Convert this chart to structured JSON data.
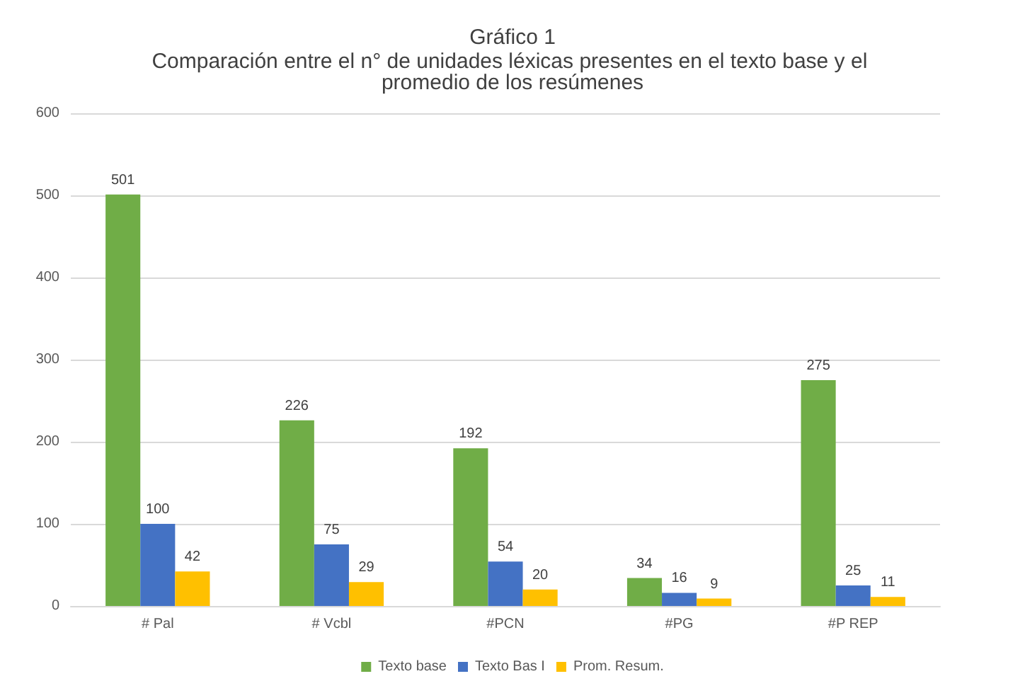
{
  "chart_data": {
    "type": "bar",
    "title": "Gráfico 1",
    "subtitle": "Comparación entre el n° de unidades léxicas presentes en el texto base y el promedio de los resúmenes",
    "categories": [
      "# Pal",
      "# Vcbl",
      "#PCN",
      "#PG",
      "#P REP"
    ],
    "series": [
      {
        "name": "Texto base",
        "color": "#70ad47",
        "values": [
          501,
          226,
          192,
          34,
          275
        ]
      },
      {
        "name": "Texto Bas I",
        "color": "#4472c4",
        "values": [
          100,
          75,
          54,
          16,
          25
        ]
      },
      {
        "name": "Prom. Resum.",
        "color": "#ffc000",
        "values": [
          42,
          29,
          20,
          9,
          11
        ]
      }
    ],
    "ylim": [
      0,
      600
    ],
    "yticks": [
      0,
      100,
      200,
      300,
      400,
      500,
      600
    ],
    "grid": "y",
    "legend": "bottom",
    "data_labels": true
  }
}
